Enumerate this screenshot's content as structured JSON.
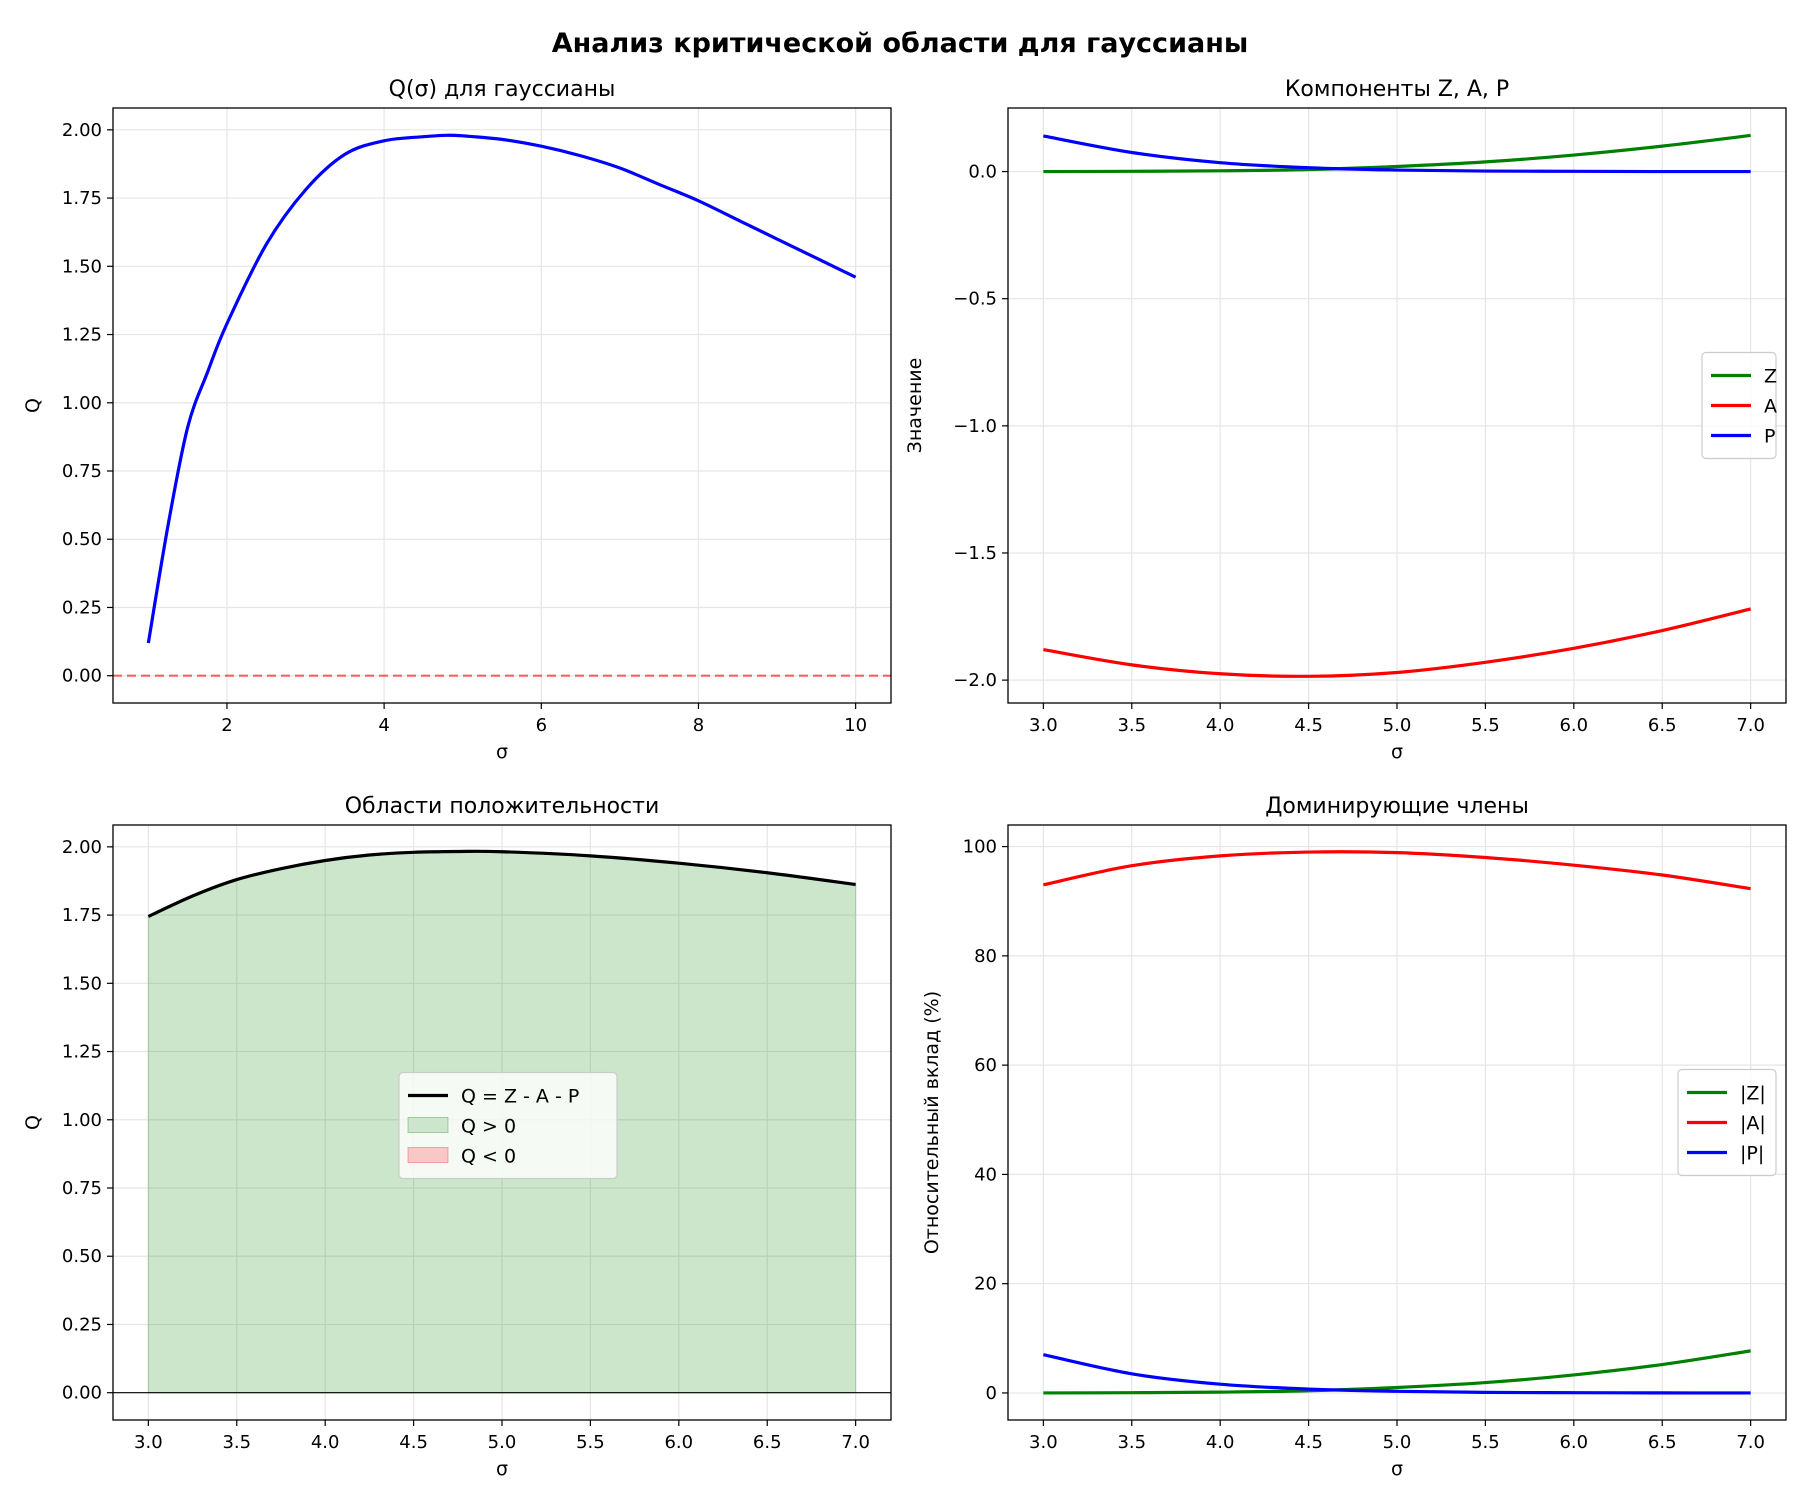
{
  "suptitle": "Анализ критической области для гауссианы",
  "colors": {
    "green": "#008000",
    "red": "#ff0000",
    "blue": "#0000ff",
    "black": "#000000",
    "grid": "#e6e6e6"
  },
  "chart_data": [
    {
      "id": "q_sigma",
      "type": "line",
      "title": "Q(σ) для гауссианы",
      "xlabel": "σ",
      "ylabel": "Q",
      "xlim": [
        0.55,
        10.45
      ],
      "ylim": [
        -0.1,
        2.08
      ],
      "xticks": [
        2,
        4,
        6,
        8,
        10
      ],
      "yticks": [
        0.0,
        0.25,
        0.5,
        0.75,
        1.0,
        1.25,
        1.5,
        1.75,
        2.0
      ],
      "grid": true,
      "hline": {
        "y": 0,
        "style": "dashed",
        "color": "#ff0000",
        "alpha": 0.6
      },
      "series": [
        {
          "color": "#0000ff",
          "x": [
            1.0,
            1.25,
            1.5,
            1.75,
            2.0,
            2.5,
            3.0,
            3.5,
            4.0,
            4.5,
            4.8,
            5.0,
            5.5,
            6.0,
            6.5,
            7.0,
            7.5,
            8.0,
            8.5,
            9.0,
            9.5,
            10.0
          ],
          "y": [
            0.12,
            0.55,
            0.91,
            1.11,
            1.29,
            1.58,
            1.78,
            1.91,
            1.96,
            1.975,
            1.98,
            1.978,
            1.965,
            1.94,
            1.905,
            1.86,
            1.8,
            1.74,
            1.67,
            1.6,
            1.53,
            1.46
          ]
        }
      ]
    },
    {
      "id": "components",
      "type": "line",
      "title": "Компоненты Z, A, P",
      "xlabel": "σ",
      "ylabel": "Значение",
      "xlim": [
        2.8,
        7.2
      ],
      "ylim": [
        -2.09,
        0.25
      ],
      "xticks": [
        3.0,
        3.5,
        4.0,
        4.5,
        5.0,
        5.5,
        6.0,
        6.5,
        7.0
      ],
      "yticks": [
        0.0,
        -0.5,
        -1.0,
        -1.5,
        -2.0
      ],
      "grid": true,
      "legend": "center-right",
      "series": [
        {
          "name": "Z",
          "color": "#008000",
          "x": [
            3.0,
            3.5,
            4.0,
            4.5,
            5.0,
            5.5,
            6.0,
            6.5,
            7.0
          ],
          "y": [
            0.0,
            0.001,
            0.003,
            0.008,
            0.02,
            0.038,
            0.065,
            0.1,
            0.142
          ]
        },
        {
          "name": "A",
          "color": "#ff0000",
          "x": [
            3.0,
            3.5,
            4.0,
            4.5,
            5.0,
            5.5,
            6.0,
            6.5,
            7.0
          ],
          "y": [
            -1.88,
            -1.94,
            -1.975,
            -1.985,
            -1.97,
            -1.93,
            -1.875,
            -1.805,
            -1.72
          ]
        },
        {
          "name": "P",
          "color": "#0000ff",
          "x": [
            3.0,
            3.5,
            4.0,
            4.5,
            5.0,
            5.5,
            6.0,
            6.5,
            7.0
          ],
          "y": [
            0.14,
            0.075,
            0.035,
            0.015,
            0.006,
            0.002,
            0.001,
            0.0,
            0.0
          ]
        }
      ]
    },
    {
      "id": "positivity",
      "type": "area",
      "title": "Области положительности",
      "xlabel": "σ",
      "ylabel": "Q",
      "xlim": [
        2.8,
        7.2
      ],
      "ylim": [
        -0.1,
        2.08
      ],
      "xticks": [
        3.0,
        3.5,
        4.0,
        4.5,
        5.0,
        5.5,
        6.0,
        6.5,
        7.0
      ],
      "yticks": [
        0.0,
        0.25,
        0.5,
        0.75,
        1.0,
        1.25,
        1.5,
        1.75,
        2.0
      ],
      "grid": true,
      "hline": {
        "y": 0,
        "style": "solid",
        "color": "#000000"
      },
      "legend": "center",
      "series": [
        {
          "name": "Q = Z - A - P",
          "color": "#000000",
          "x": [
            3.0,
            3.25,
            3.5,
            3.75,
            4.0,
            4.25,
            4.5,
            4.75,
            5.0,
            5.5,
            6.0,
            6.5,
            7.0
          ],
          "y": [
            1.745,
            1.82,
            1.88,
            1.92,
            1.95,
            1.97,
            1.98,
            1.983,
            1.982,
            1.967,
            1.94,
            1.905,
            1.862
          ]
        }
      ],
      "fills": [
        {
          "name": "Q > 0",
          "color": "#008000",
          "alpha": 0.2,
          "legend_color": "#cce5cc"
        },
        {
          "name": "Q < 0",
          "color": "#ff0000",
          "alpha": 0.2,
          "legend_color": "#f8c8c8"
        }
      ]
    },
    {
      "id": "dominant",
      "type": "line",
      "title": "Доминирующие члены",
      "xlabel": "σ",
      "ylabel": "Относительный вклад (%)",
      "xlim": [
        2.8,
        7.2
      ],
      "ylim": [
        -4.95,
        103.95
      ],
      "xticks": [
        3.0,
        3.5,
        4.0,
        4.5,
        5.0,
        5.5,
        6.0,
        6.5,
        7.0
      ],
      "yticks": [
        0,
        20,
        40,
        60,
        80,
        100
      ],
      "grid": true,
      "legend": "center-right",
      "series": [
        {
          "name": "|Z|",
          "color": "#008000",
          "x": [
            3.0,
            3.5,
            4.0,
            4.5,
            5.0,
            5.5,
            6.0,
            6.5,
            7.0
          ],
          "y": [
            0.0,
            0.05,
            0.15,
            0.4,
            1.0,
            1.9,
            3.3,
            5.2,
            7.7
          ]
        },
        {
          "name": "|A|",
          "color": "#ff0000",
          "x": [
            3.0,
            3.5,
            4.0,
            4.5,
            5.0,
            5.5,
            6.0,
            6.5,
            7.0
          ],
          "y": [
            93.0,
            96.5,
            98.3,
            99.0,
            98.9,
            98.0,
            96.6,
            94.8,
            92.3
          ]
        },
        {
          "name": "|P|",
          "color": "#0000ff",
          "x": [
            3.0,
            3.5,
            4.0,
            4.5,
            5.0,
            5.5,
            6.0,
            6.5,
            7.0
          ],
          "y": [
            7.0,
            3.5,
            1.6,
            0.7,
            0.3,
            0.1,
            0.05,
            0.01,
            0.0
          ]
        }
      ]
    }
  ]
}
